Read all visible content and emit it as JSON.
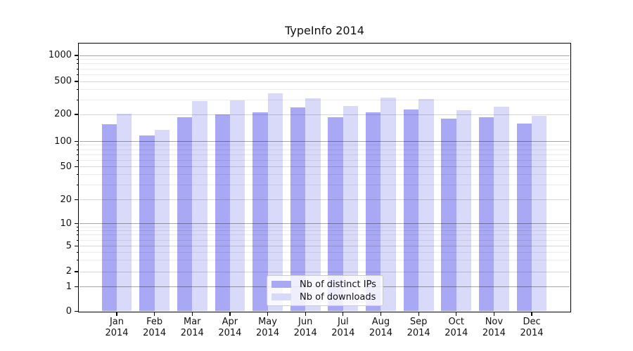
{
  "chart_data": {
    "type": "bar",
    "title": "TypeInfo 2014",
    "xlabel": "",
    "ylabel": "",
    "year_suffix": "2014",
    "categories": [
      "Jan",
      "Feb",
      "Mar",
      "Apr",
      "May",
      "Jun",
      "Jul",
      "Aug",
      "Sep",
      "Oct",
      "Nov",
      "Dec"
    ],
    "series": [
      {
        "name": "Nb of distinct IPs",
        "color": "#a8a8f4",
        "values": [
          155,
          116,
          185,
          199,
          212,
          243,
          186,
          211,
          230,
          178,
          187,
          158
        ]
      },
      {
        "name": "Nb of downloads",
        "color": "#d9d9f9",
        "values": [
          204,
          134,
          288,
          293,
          358,
          315,
          253,
          320,
          310,
          226,
          246,
          194
        ]
      }
    ],
    "yscale": "symlog",
    "y_ticks": [
      0,
      1,
      2,
      5,
      10,
      20,
      50,
      100,
      200,
      500,
      1000
    ],
    "ylim": [
      0,
      1400
    ],
    "grid": true,
    "legend_position": "lower center"
  }
}
